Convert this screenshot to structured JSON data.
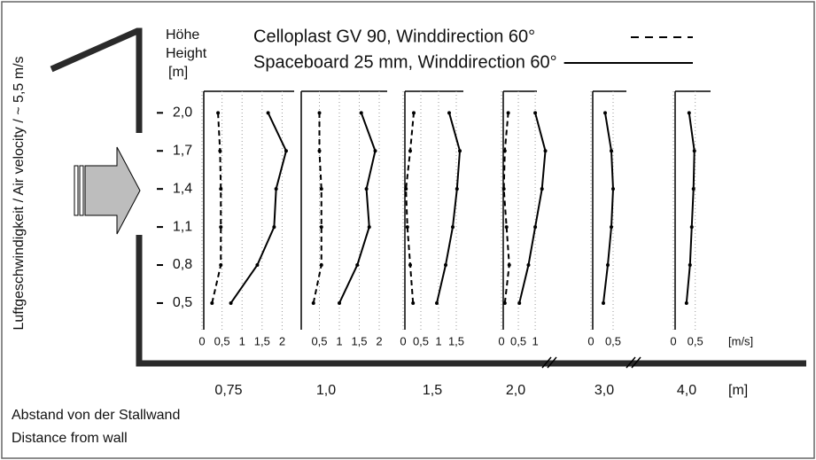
{
  "legend_title": null,
  "y_axis": {
    "title": "Luftgeschwindigkeit / Air velocity / ~ 5,5 m/s",
    "heading": [
      "Höhe",
      "Height",
      "[m]"
    ],
    "ylim": [
      0.29,
      2.17
    ],
    "yticks": [
      {
        "value": 0.5,
        "label": "0,5"
      },
      {
        "value": 0.8,
        "label": "0,8"
      },
      {
        "value": 1.1,
        "label": "1,1"
      },
      {
        "value": 1.4,
        "label": "1,4"
      },
      {
        "value": 1.7,
        "label": "1,7"
      },
      {
        "value": 2.0,
        "label": "2,0"
      }
    ]
  },
  "x_unit": "[m/s]",
  "distance_unit": "[m]",
  "distance_title": [
    "Abstand von der Stallwand",
    "Distance from wall"
  ],
  "chart_data": [
    {
      "type": "line",
      "distance": {
        "value": 0.75,
        "label": "0,75"
      },
      "xlim": [
        0,
        2.3
      ],
      "xticks": [
        0,
        {
          "value": 0.5,
          "label": "0,5"
        },
        1,
        {
          "value": 1.5,
          "label": "1,5"
        },
        2
      ],
      "series": [
        {
          "name": "Celloplast GV 90, Winddirection 60°",
          "color": "#000000",
          "style": "dashed",
          "values": [
            0.25,
            0.47,
            0.47,
            0.47,
            0.45,
            0.4
          ]
        },
        {
          "name": "Spaceboard 25 mm, Winddirection 60°",
          "color": "#000000",
          "style": "solid",
          "values": [
            0.72,
            1.38,
            1.8,
            1.85,
            2.1,
            1.65
          ]
        }
      ]
    },
    {
      "type": "line",
      "distance": {
        "value": 1.0,
        "label": "1,0"
      },
      "xlim": [
        0,
        2.2
      ],
      "xticks": [
        {
          "value": 0.5,
          "label": "0,5"
        },
        1,
        {
          "value": 1.5,
          "label": "1,5"
        },
        2
      ],
      "series": [
        {
          "color": "#000000",
          "style": "dashed",
          "values": [
            0.35,
            0.55,
            0.55,
            0.55,
            0.5,
            0.5
          ]
        },
        {
          "color": "#000000",
          "style": "solid",
          "values": [
            1.0,
            1.45,
            1.75,
            1.68,
            1.9,
            1.55
          ]
        }
      ]
    },
    {
      "type": "line",
      "distance": {
        "value": 1.5,
        "label": "1,5"
      },
      "xlim": [
        0,
        1.7
      ],
      "xticks": [
        0,
        {
          "value": 0.5,
          "label": "0,5"
        },
        1,
        {
          "value": 1.5,
          "label": "1,5"
        }
      ],
      "series": [
        {
          "color": "#000000",
          "style": "dashed",
          "values": [
            0.28,
            0.2,
            0.12,
            0.08,
            0.2,
            0.3
          ]
        },
        {
          "color": "#000000",
          "style": "solid",
          "values": [
            0.95,
            1.2,
            1.4,
            1.52,
            1.6,
            1.3
          ]
        }
      ]
    },
    {
      "type": "line",
      "distance": {
        "value": 2.0,
        "label": "2,0"
      },
      "xlim": [
        0,
        1.05
      ],
      "xticks": [
        0,
        {
          "value": 0.5,
          "label": "0,5"
        },
        1
      ],
      "series": [
        {
          "color": "#000000",
          "style": "dashed",
          "values": [
            0.1,
            0.23,
            0.15,
            0.07,
            0.1,
            0.2
          ]
        },
        {
          "color": "#000000",
          "style": "solid",
          "values": [
            0.53,
            0.8,
            1.0,
            1.2,
            1.3,
            1.0
          ]
        }
      ]
    },
    {
      "type": "line",
      "distance": {
        "value": 3.0,
        "label": "3,0"
      },
      "xlim": [
        0,
        0.8
      ],
      "xticks": [
        0,
        {
          "value": 0.5,
          "label": "0,5"
        }
      ],
      "series": [
        {
          "color": "#000000",
          "style": "solid",
          "values": [
            0.28,
            0.38,
            0.46,
            0.5,
            0.46,
            0.32
          ]
        }
      ]
    },
    {
      "type": "line",
      "distance": {
        "value": 4.0,
        "label": "4,0"
      },
      "xlim": [
        0,
        0.85
      ],
      "xticks": [
        0,
        {
          "value": 0.5,
          "label": "0,5"
        }
      ],
      "series": [
        {
          "color": "#000000",
          "style": "solid",
          "values": [
            0.3,
            0.38,
            0.42,
            0.46,
            0.48,
            0.36
          ]
        }
      ]
    }
  ]
}
